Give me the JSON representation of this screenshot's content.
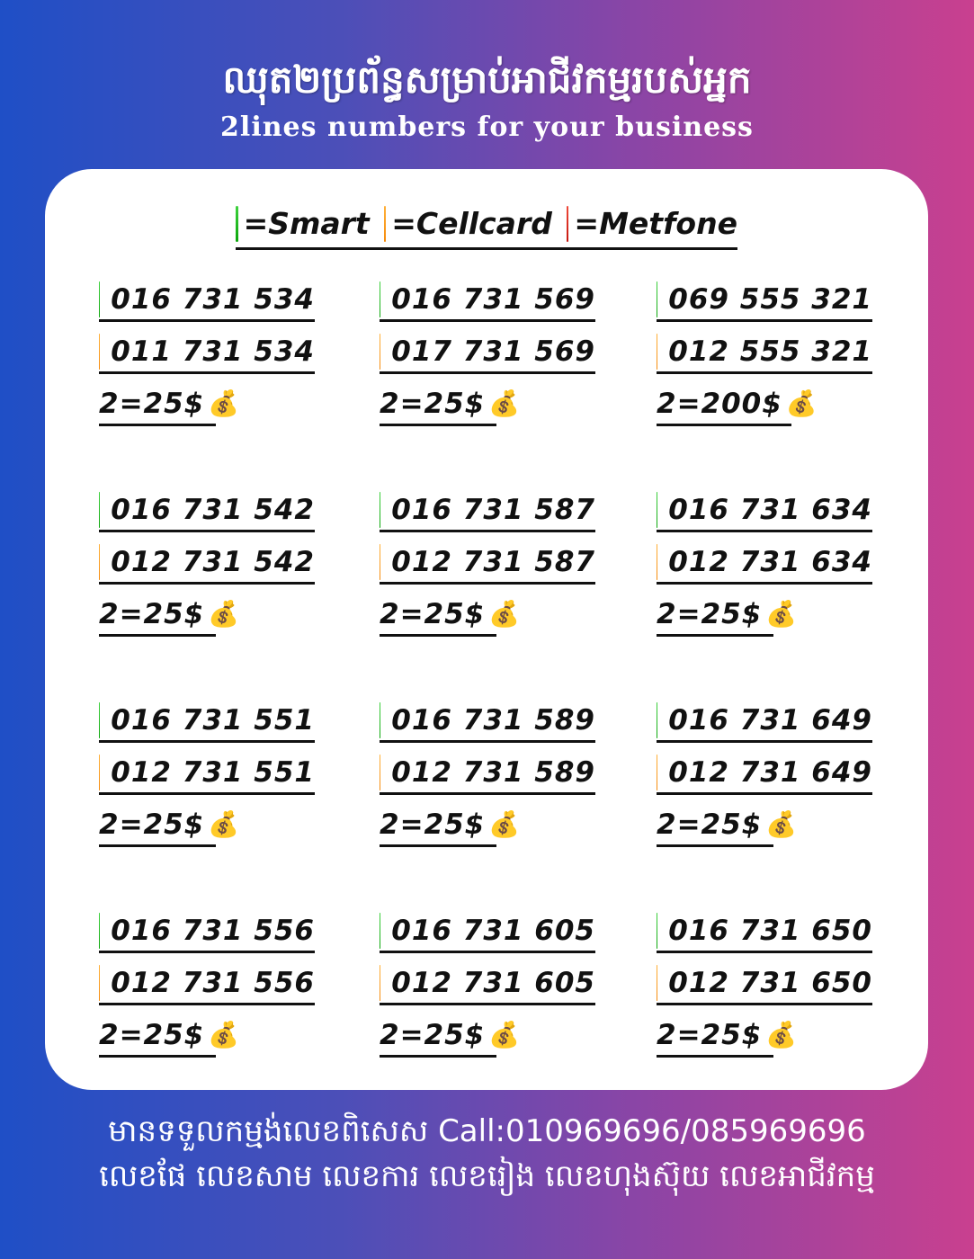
{
  "header": {
    "title_km": "ឈុត២ប្រព័ន្ធសម្រាប់អាជីវកម្មរបស់អ្នក",
    "subtitle": "2lines numbers for your business"
  },
  "legend": [
    {
      "label": "=Smart",
      "color": "#16b516"
    },
    {
      "label": "=Cellcard",
      "color": "#f99a1c"
    },
    {
      "label": "=Metfone",
      "color": "#d92a1e"
    }
  ],
  "money_icon": "money-bag-icon",
  "pairs": [
    {
      "smart": "016 731 534",
      "cellcard": "011 731 534",
      "price": "2=25$"
    },
    {
      "smart": "016 731 569",
      "cellcard": "017 731 569",
      "price": "2=25$"
    },
    {
      "smart": "069 555 321",
      "cellcard": "012 555 321",
      "price": "2=200$"
    },
    {
      "smart": "016 731 542",
      "cellcard": "012 731 542",
      "price": "2=25$"
    },
    {
      "smart": "016 731 587",
      "cellcard": "012 731 587",
      "price": "2=25$"
    },
    {
      "smart": "016 731 634",
      "cellcard": "012 731 634",
      "price": "2=25$"
    },
    {
      "smart": "016 731 551",
      "cellcard": "012 731 551",
      "price": "2=25$"
    },
    {
      "smart": "016 731 589",
      "cellcard": "012 731 589",
      "price": "2=25$"
    },
    {
      "smart": "016 731 649",
      "cellcard": "012 731 649",
      "price": "2=25$"
    },
    {
      "smart": "016 731 556",
      "cellcard": "012 731 556",
      "price": "2=25$"
    },
    {
      "smart": "016 731 605",
      "cellcard": "012 731 605",
      "price": "2=25$"
    },
    {
      "smart": "016 731 650",
      "cellcard": "012 731 650",
      "price": "2=25$"
    }
  ],
  "footer": {
    "line1": "មានទទួលកម្មង់លេខពិសេស Call:010969696/085969696",
    "line2": "លេខផែ លេខសាម លេខការ លេខរៀង លេខហុងស៊ុយ លេខអាជីវកម្ម"
  }
}
